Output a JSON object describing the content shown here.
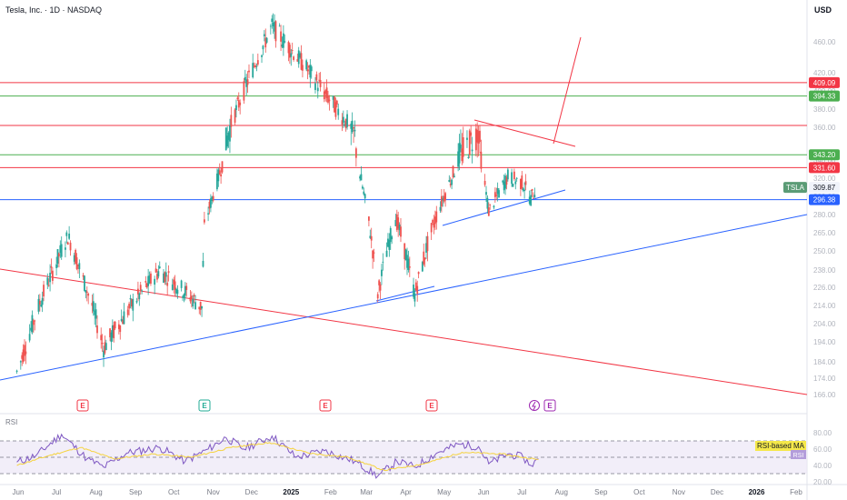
{
  "header": {
    "symbol_line": "Tesla, Inc. · 1D · NASDAQ",
    "currency": "USD"
  },
  "colors": {
    "up": "#26a69a",
    "down": "#ef5350",
    "red_line": "#f23645",
    "green_line": "#4caf50",
    "blue_line": "#2962ff",
    "rsi_line": "#7e57c2",
    "rsi_ma": "#f5d33f",
    "rsi_band": "#ede7f6"
  },
  "chart_data": [
    {
      "type": "candlestick",
      "title": "Tesla, Inc. · 1D · NASDAQ",
      "ylim": [
        160,
        500
      ],
      "price_ticks": [
        166,
        174,
        184,
        194,
        204,
        214,
        226,
        238,
        250,
        265,
        280,
        300,
        320,
        340,
        360,
        380,
        400,
        420,
        460
      ],
      "x_labels": [
        "Jun",
        "Jul",
        "Aug",
        "Sep",
        "Oct",
        "Nov",
        "Dec",
        "2025",
        "Feb",
        "Mar",
        "Apr",
        "May",
        "Jun",
        "Jul",
        "Aug",
        "Sep",
        "Oct",
        "Nov",
        "Dec",
        "2026",
        "Feb"
      ],
      "bold_x_labels": [
        "2025",
        "2026"
      ],
      "horizontal_levels": [
        {
          "price": 409.09,
          "label": "409.09",
          "color": "#f23645"
        },
        {
          "price": 394.33,
          "label": "394.33",
          "color": "#4caf50"
        },
        {
          "price": 362,
          "label": "",
          "color": "#f23645"
        },
        {
          "price": 343.2,
          "label": "343.20",
          "color": "#4caf50"
        },
        {
          "price": 331.6,
          "label": "331.60",
          "color": "#f23645"
        },
        {
          "price": 296.38,
          "label": "296.38",
          "color": "#2962ff"
        }
      ],
      "last_price": {
        "symbol": "TSLA",
        "value": "309.87",
        "price": 309.87
      },
      "earnings_markers": [
        "E",
        "E",
        "E",
        "E",
        "E"
      ],
      "key_points": [
        {
          "date": "2024-05-31",
          "close": 178
        },
        {
          "date": "2024-07-10",
          "close": 262
        },
        {
          "date": "2024-08-07",
          "close": 191
        },
        {
          "date": "2024-09-20",
          "close": 238
        },
        {
          "date": "2024-10-23",
          "close": 213
        },
        {
          "date": "2024-10-25",
          "close": 269
        },
        {
          "date": "2024-11-11",
          "close": 350
        },
        {
          "date": "2024-12-17",
          "close": 480
        },
        {
          "date": "2025-01-27",
          "close": 398
        },
        {
          "date": "2025-02-20",
          "close": 354
        },
        {
          "date": "2025-03-10",
          "close": 222
        },
        {
          "date": "2025-03-24",
          "close": 278
        },
        {
          "date": "2025-04-08",
          "close": 221
        },
        {
          "date": "2025-05-13",
          "close": 342
        },
        {
          "date": "2025-05-28",
          "close": 358
        },
        {
          "date": "2025-06-05",
          "close": 284
        },
        {
          "date": "2025-06-20",
          "close": 322
        },
        {
          "date": "2025-07-02",
          "close": 314
        },
        {
          "date": "2025-07-08",
          "close": 297
        },
        {
          "date": "2025-07-14",
          "close": 316
        }
      ]
    },
    {
      "type": "line",
      "title": "RSI",
      "ylim": [
        20,
        85
      ],
      "ticks": [
        20,
        40,
        60,
        80
      ],
      "band": [
        30,
        70
      ],
      "series_labels": {
        "ma": "RSI-based MA",
        "rsi": "RSI"
      },
      "rsi_points": [
        {
          "date": "2024-05-31",
          "value": 44
        },
        {
          "date": "2024-06-15",
          "value": 52
        },
        {
          "date": "2024-07-05",
          "value": 78
        },
        {
          "date": "2024-07-25",
          "value": 48
        },
        {
          "date": "2024-08-07",
          "value": 38
        },
        {
          "date": "2024-08-25",
          "value": 55
        },
        {
          "date": "2024-09-20",
          "value": 62
        },
        {
          "date": "2024-10-10",
          "value": 45
        },
        {
          "date": "2024-10-28",
          "value": 60
        },
        {
          "date": "2024-11-11",
          "value": 74
        },
        {
          "date": "2024-11-25",
          "value": 60
        },
        {
          "date": "2024-12-17",
          "value": 76
        },
        {
          "date": "2025-01-05",
          "value": 50
        },
        {
          "date": "2025-01-27",
          "value": 58
        },
        {
          "date": "2025-02-20",
          "value": 45
        },
        {
          "date": "2025-03-10",
          "value": 27
        },
        {
          "date": "2025-03-25",
          "value": 45
        },
        {
          "date": "2025-04-08",
          "value": 38
        },
        {
          "date": "2025-04-25",
          "value": 55
        },
        {
          "date": "2025-05-13",
          "value": 66
        },
        {
          "date": "2025-05-28",
          "value": 63
        },
        {
          "date": "2025-06-05",
          "value": 42
        },
        {
          "date": "2025-06-20",
          "value": 54
        },
        {
          "date": "2025-07-02",
          "value": 50
        },
        {
          "date": "2025-07-08",
          "value": 40
        },
        {
          "date": "2025-07-14",
          "value": 48
        }
      ],
      "ma_points": [
        {
          "date": "2024-05-31",
          "value": 40
        },
        {
          "date": "2024-06-25",
          "value": 52
        },
        {
          "date": "2024-07-20",
          "value": 62
        },
        {
          "date": "2024-08-15",
          "value": 48
        },
        {
          "date": "2024-09-15",
          "value": 54
        },
        {
          "date": "2024-10-15",
          "value": 50
        },
        {
          "date": "2024-11-15",
          "value": 62
        },
        {
          "date": "2024-12-15",
          "value": 68
        },
        {
          "date": "2025-01-15",
          "value": 55
        },
        {
          "date": "2025-02-15",
          "value": 50
        },
        {
          "date": "2025-03-15",
          "value": 34
        },
        {
          "date": "2025-04-15",
          "value": 42
        },
        {
          "date": "2025-05-15",
          "value": 56
        },
        {
          "date": "2025-06-15",
          "value": 54
        },
        {
          "date": "2025-07-14",
          "value": 47
        }
      ]
    }
  ]
}
